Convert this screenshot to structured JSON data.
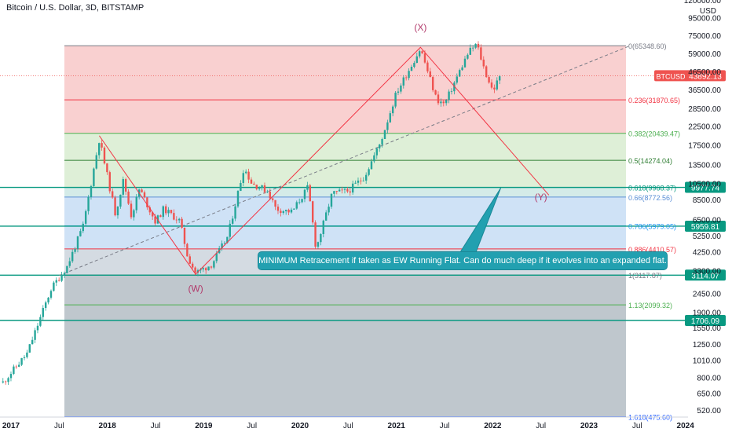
{
  "header": {
    "title": "Bitcoin / U.S. Dollar, 3D, BITSTAMP"
  },
  "note": {
    "text": "MINIMUM Retracement if taken as EW Running Flat. Can do much deep if it evolves into an expanded flat."
  },
  "chart_data": {
    "type": "candlestick",
    "title": "Bitcoin / U.S. Dollar, 3D, BITSTAMP",
    "ylabel": "USD",
    "yscale": "log",
    "ylim": [
      430,
      125000
    ],
    "x_tick_labels": [
      "2017",
      "Jul",
      "2018",
      "Jul",
      "2019",
      "Jul",
      "2020",
      "Jul",
      "2021",
      "Jul",
      "2022",
      "Jul",
      "2023",
      "Jul",
      "2024"
    ],
    "y_tick_labels": [
      120000,
      95000,
      75000,
      59000,
      46500,
      36500,
      28500,
      22500,
      17500,
      13500,
      10500,
      8500,
      6500,
      5250,
      4250,
      3300,
      2450,
      1900,
      1550,
      1250,
      1010,
      800,
      650,
      520
    ],
    "price_path": [
      [
        "2016-12",
        750
      ],
      [
        "2017-03",
        1100
      ],
      [
        "2017-06",
        2600
      ],
      [
        "2017-08",
        3500
      ],
      [
        "2017-10",
        6000
      ],
      [
        "2017-12",
        19000
      ],
      [
        "2018-02",
        7000
      ],
      [
        "2018-03",
        11000
      ],
      [
        "2018-04",
        6800
      ],
      [
        "2018-05",
        9800
      ],
      [
        "2018-07",
        6300
      ],
      [
        "2018-08",
        7500
      ],
      [
        "2018-10",
        6400
      ],
      [
        "2018-11",
        4000
      ],
      [
        "2018-12",
        3200
      ],
      [
        "2019-02",
        3600
      ],
      [
        "2019-04",
        5200
      ],
      [
        "2019-06",
        13000
      ],
      [
        "2019-07",
        10500
      ],
      [
        "2019-09",
        9500
      ],
      [
        "2019-10",
        7500
      ],
      [
        "2019-12",
        7200
      ],
      [
        "2020-02",
        10000
      ],
      [
        "2020-03",
        4400
      ],
      [
        "2020-05",
        9200
      ],
      [
        "2020-07",
        9500
      ],
      [
        "2020-09",
        11500
      ],
      [
        "2020-11",
        18000
      ],
      [
        "2021-01",
        35000
      ],
      [
        "2021-04",
        63000
      ],
      [
        "2021-06",
        32000
      ],
      [
        "2021-07",
        30000
      ],
      [
        "2021-09",
        48000
      ],
      [
        "2021-10",
        60000
      ],
      [
        "2021-11",
        67000
      ],
      [
        "2021-12",
        47000
      ],
      [
        "2022-01",
        36000
      ],
      [
        "2022-02",
        43892
      ]
    ],
    "fib_levels": [
      {
        "ratio": "0",
        "value": 65348.6,
        "label": "0(65348.60)",
        "color": "#787b86",
        "band": "#f8c8c8"
      },
      {
        "ratio": "0.236",
        "value": 31870.65,
        "label": "0.236(31870.65)",
        "color": "#f23645",
        "band": "#f8c8c8"
      },
      {
        "ratio": "0.382",
        "value": 20439.47,
        "label": "0.382(20439.47)",
        "color": "#4caf50",
        "band": "#d8ecd0"
      },
      {
        "ratio": "0.5",
        "value": 14274.04,
        "label": "0.5(14274.04)",
        "color": "#2e7d32",
        "band": "#d8ecd0"
      },
      {
        "ratio": "0.618",
        "value": 9968.37,
        "label": "0.618(9968.37)",
        "color": "#089981",
        "band": "#cce8e4"
      },
      {
        "ratio": "0.66",
        "value": 8772.56,
        "label": "0.66(8772.56)",
        "color": "#5b8fd6",
        "band": "#c7ddf5"
      },
      {
        "ratio": "0.786",
        "value": 5979.05,
        "label": "0.786(5979.05)",
        "color": "#2196f3",
        "band": "#c7ddf5"
      },
      {
        "ratio": "0.886",
        "value": 4410.57,
        "label": "0.886(4410.57)",
        "color": "#f23645",
        "band": "#ccd5dd"
      },
      {
        "ratio": "1",
        "value": 3117.87,
        "label": "1(3117.87)",
        "color": "#787b86",
        "band": "#b4bdc4"
      },
      {
        "ratio": "1.13",
        "value": 2099.32,
        "label": "1.13(2099.32)",
        "color": "#4caf50",
        "band": "#b4bdc4"
      },
      {
        "ratio": "1.618",
        "value": 475.6,
        "label": "1.618(475.60)",
        "color": "#2962ff",
        "band": "#dcc4dc"
      }
    ],
    "horizontal_lines": [
      {
        "value": 9977.74,
        "label": "9977.74"
      },
      {
        "value": 5959.81,
        "label": "5959.81"
      },
      {
        "value": 3114.07,
        "label": "3114.07"
      },
      {
        "value": 1706.09,
        "label": "1706.09"
      }
    ],
    "current_price": {
      "symbol": "BTCUSD",
      "value": 43892.13
    },
    "wave_labels": [
      {
        "text": "(W)",
        "date": "2018-12",
        "value": 2500
      },
      {
        "text": "(X)",
        "date": "2021-04",
        "value": 80000
      },
      {
        "text": "(Y)",
        "date": "2022-07",
        "value": 8400
      }
    ],
    "wave_path": [
      [
        "2017-12",
        19800
      ],
      [
        "2018-12",
        3150
      ],
      [
        "2021-04",
        64000
      ],
      [
        "2022-08",
        9000
      ]
    ],
    "trendline": [
      [
        "2017-07",
        3100
      ],
      [
        "2023-06",
        65000
      ]
    ],
    "callout_target": {
      "date": "2022-02",
      "value": 9900
    },
    "colors": {
      "axis_text": "#131722",
      "grid_text": "#131722",
      "hline": "#089981",
      "wave": "#f23645",
      "wave_label": "#b23a6b",
      "up": "#26a69a",
      "down": "#ef5350",
      "price_tag": "#ef5350",
      "note_bg": "#22a0b0"
    }
  }
}
